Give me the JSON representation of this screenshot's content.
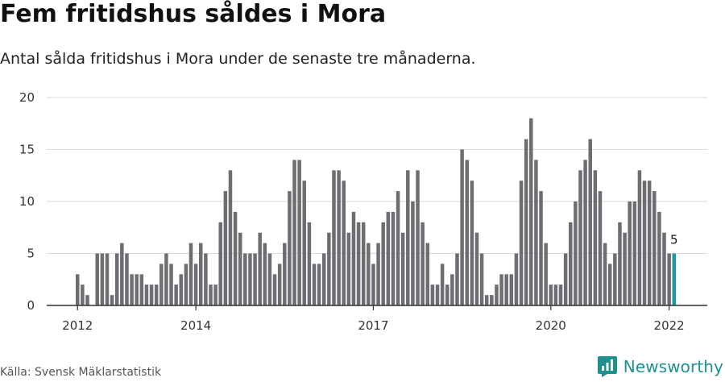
{
  "header": {
    "title": "Fem fritidshus såldes i Mora",
    "subtitle": "Antal sålda fritidshus i Mora under de senaste tre månaderna."
  },
  "footer": {
    "source": "Källa: Svensk Mäklarstatistik",
    "brand": "Newsworthy"
  },
  "colors": {
    "bar": "#6e6d72",
    "highlight": "#1a9a9a",
    "grid": "#d9d9d9",
    "axis": "#333333"
  },
  "chart_data": {
    "type": "bar",
    "title": "Fem fritidshus såldes i Mora",
    "subtitle": "Antal sålda fritidshus i Mora under de senaste tre månaderna.",
    "xlabel": "",
    "ylabel": "",
    "ylim": [
      0,
      20
    ],
    "yticks": [
      "0",
      "5",
      "10",
      "15",
      "20"
    ],
    "xticks": [
      "2012",
      "2014",
      "2017",
      "2020",
      "2022"
    ],
    "grid": true,
    "legend": "none",
    "series": [
      {
        "values": [
          3,
          2,
          1,
          0,
          5,
          5,
          5,
          1,
          5,
          6,
          5,
          3,
          3,
          3,
          2,
          2,
          2,
          4,
          5,
          4,
          2,
          3,
          4,
          6,
          4,
          6,
          5,
          2,
          2,
          8,
          11,
          13,
          9,
          7,
          5,
          5,
          5,
          7,
          6,
          5,
          3,
          4,
          6,
          11,
          14,
          14,
          12,
          8,
          4,
          4,
          5,
          7,
          13,
          13,
          12,
          7,
          9,
          8,
          8,
          6,
          4,
          6,
          8,
          9,
          9,
          11,
          7,
          13,
          10,
          13,
          8,
          6,
          2,
          2,
          4,
          2,
          3,
          5,
          15,
          14,
          12,
          7,
          5,
          1,
          1,
          2,
          3,
          3,
          3,
          5,
          12,
          16,
          18,
          14,
          11,
          6,
          2,
          2,
          2,
          5,
          8,
          10,
          13,
          14,
          16,
          13,
          11,
          6,
          4,
          5,
          8,
          7,
          10,
          10,
          13,
          12,
          12,
          11,
          9,
          7,
          5,
          5
        ]
      }
    ],
    "annotations": [
      {
        "text": "5",
        "target": "last bar"
      }
    ]
  }
}
